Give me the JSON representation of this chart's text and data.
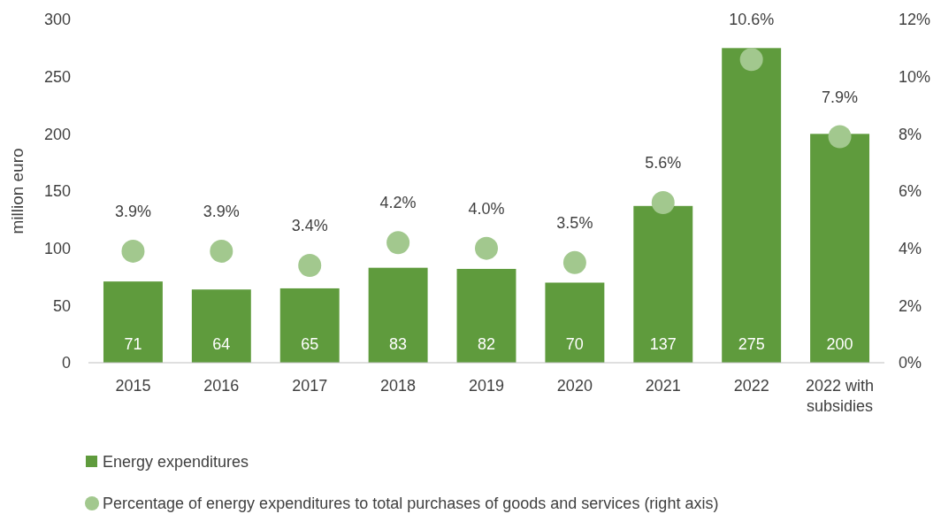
{
  "chart_data": {
    "type": "bar",
    "ylabel": "million euro",
    "categories": [
      "2015",
      "2016",
      "2017",
      "2018",
      "2019",
      "2020",
      "2021",
      "2022",
      "2022 with subsidies"
    ],
    "series": [
      {
        "name": "Energy expenditures",
        "color": "#5f9b3d",
        "values": [
          71,
          64,
          65,
          83,
          82,
          70,
          137,
          275,
          200
        ],
        "value_labels": [
          "71",
          "64",
          "65",
          "83",
          "82",
          "70",
          "137",
          "275",
          "200"
        ]
      },
      {
        "type": "scatter",
        "name": "Percentage of energy expenditures to total purchases of goods and services (right axis)",
        "color": "#a2c88e",
        "axis": "y2",
        "marker": "circle",
        "values": [
          3.9,
          3.9,
          3.4,
          4.2,
          4.0,
          3.5,
          5.6,
          10.6,
          7.9
        ],
        "value_labels": [
          "3.9%",
          "3.9%",
          "3.4%",
          "4.2%",
          "4.0%",
          "3.5%",
          "5.6%",
          "10.6%",
          "7.9%"
        ]
      }
    ],
    "ylim": [
      0,
      300
    ],
    "yticks": [
      0,
      50,
      100,
      150,
      200,
      250,
      300
    ],
    "y2lim": [
      0,
      12
    ],
    "y2ticks": [
      {
        "value": 0,
        "label": "0%"
      },
      {
        "value": 2,
        "label": "2%"
      },
      {
        "value": 4,
        "label": "4%"
      },
      {
        "value": 6,
        "label": "6%"
      },
      {
        "value": 8,
        "label": "8%"
      },
      {
        "value": 10,
        "label": "10%"
      },
      {
        "value": 12,
        "label": "12%"
      }
    ],
    "grid": false,
    "legend": "bottom"
  }
}
